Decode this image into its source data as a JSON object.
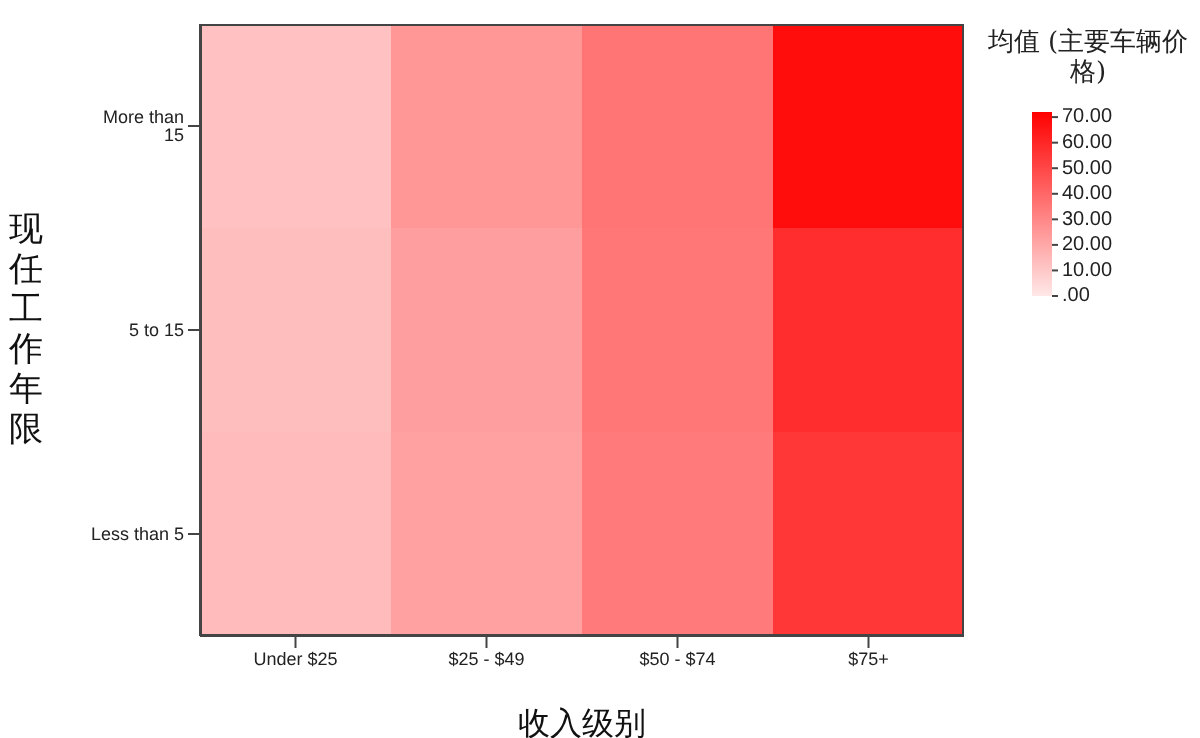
{
  "chart_data": {
    "type": "heatmap",
    "xlabel": "收入级别",
    "ylabel": "现任工作年限",
    "legend_title": "均值 (主要车辆价格)",
    "categories": [
      "Under $25",
      "$25 - $49",
      "$50 - $74",
      "$75+"
    ],
    "y_categories": [
      "More than 15",
      "5 to 15",
      "Less than 5"
    ],
    "cells": [
      [
        12,
        25,
        36,
        68
      ],
      [
        13,
        23,
        35,
        58
      ],
      [
        14,
        22,
        34,
        55
      ]
    ],
    "clim": [
      0,
      72
    ],
    "cticks": [
      {
        "value": 70,
        "label": "70.00"
      },
      {
        "value": 60,
        "label": "60.00"
      },
      {
        "value": 50,
        "label": "50.00"
      },
      {
        "value": 40,
        "label": "40.00"
      },
      {
        "value": 30,
        "label": "30.00"
      },
      {
        "value": 20,
        "label": "20.00"
      },
      {
        "value": 10,
        "label": "10.00"
      },
      {
        "value": 0,
        "label": ".00"
      }
    ]
  }
}
